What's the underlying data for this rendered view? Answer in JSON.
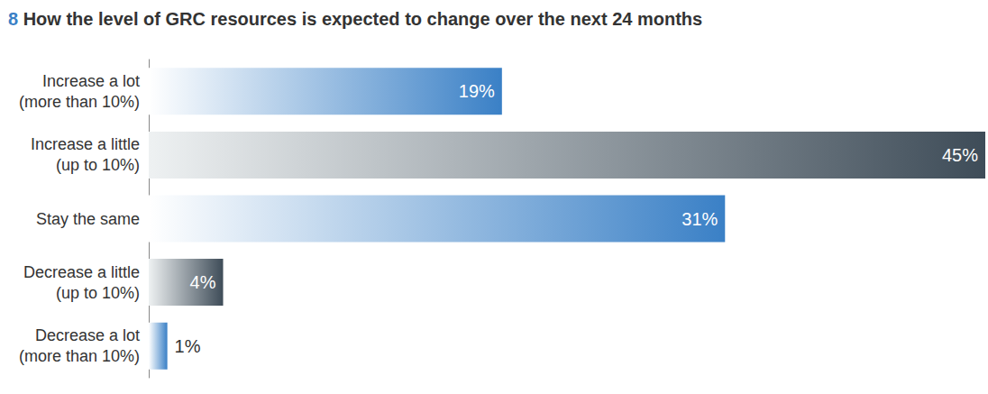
{
  "chart_data": {
    "type": "bar",
    "orientation": "horizontal",
    "title": "8 How the level of GRC resources is expected to change over the next 24 months",
    "categories": [
      "Increase a lot\n(more than 10%)",
      "Increase a little\n(up to 10%)",
      "Stay the same",
      "Decrease a little\n(up to 10%)",
      "Decrease a lot\n(more than 10%)"
    ],
    "values": [
      19,
      45,
      31,
      4,
      1
    ],
    "value_labels": [
      "19%",
      "45%",
      "31%",
      "4%",
      "1%"
    ],
    "colors": [
      "#3a80c6",
      "#3e4c58",
      "#3a80c6",
      "#3e4c58",
      "#3a80c6"
    ],
    "xlim": [
      0,
      45
    ],
    "data_labels": true,
    "tick_labels": "y",
    "grid": false
  }
}
